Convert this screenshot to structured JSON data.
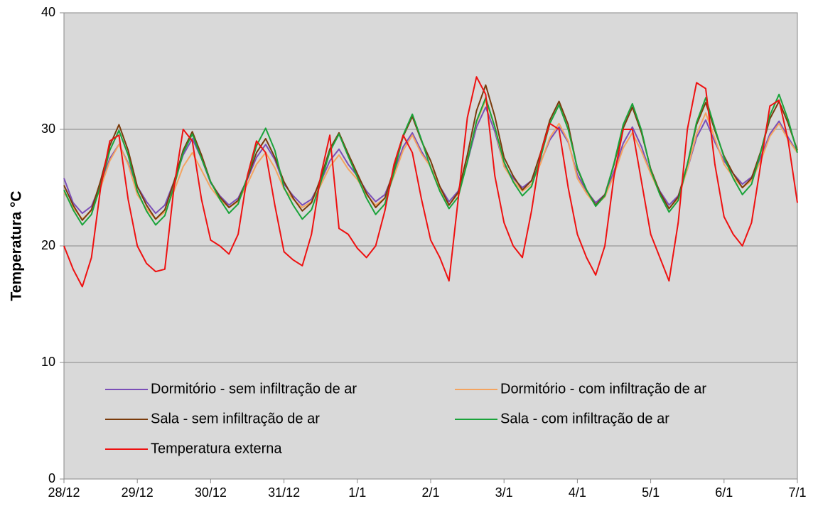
{
  "chart_data": {
    "type": "line",
    "y_label": "Temperatura °C",
    "x": [
      0,
      0.125,
      0.25,
      0.375,
      0.5,
      0.625,
      0.75,
      0.875,
      1,
      1.125,
      1.25,
      1.375,
      1.5,
      1.625,
      1.75,
      1.875,
      2,
      2.125,
      2.25,
      2.375,
      2.5,
      2.625,
      2.75,
      2.875,
      3,
      3.125,
      3.25,
      3.375,
      3.5,
      3.625,
      3.75,
      3.875,
      4,
      4.125,
      4.25,
      4.375,
      4.5,
      4.625,
      4.75,
      4.875,
      5,
      5.125,
      5.25,
      5.375,
      5.5,
      5.625,
      5.75,
      5.875,
      6,
      6.125,
      6.25,
      6.375,
      6.5,
      6.625,
      6.75,
      6.875,
      7,
      7.125,
      7.25,
      7.375,
      7.5,
      7.625,
      7.75,
      7.875,
      8,
      8.125,
      8.25,
      8.375,
      8.5,
      8.625,
      8.75,
      8.875,
      9,
      9.125,
      9.25,
      9.375,
      9.5,
      9.625,
      9.75,
      9.875,
      10
    ],
    "xlim": [
      0,
      10
    ],
    "xticks": [
      {
        "value": 0,
        "label": "28/12"
      },
      {
        "value": 1,
        "label": "29/12"
      },
      {
        "value": 2,
        "label": "30/12"
      },
      {
        "value": 3,
        "label": "31/12"
      },
      {
        "value": 4,
        "label": "1/1"
      },
      {
        "value": 5,
        "label": "2/1"
      },
      {
        "value": 6,
        "label": "3/1"
      },
      {
        "value": 7,
        "label": "4/1"
      },
      {
        "value": 8,
        "label": "5/1"
      },
      {
        "value": 9,
        "label": "6/1"
      },
      {
        "value": 10,
        "label": "7/1"
      }
    ],
    "ylim": [
      0,
      40
    ],
    "yticks": [
      0,
      10,
      20,
      30,
      40
    ],
    "grid": true,
    "series": [
      {
        "name": "Dormitório - sem infiltração de ar",
        "color": "#7b4fb8",
        "values": [
          25.8,
          23.7,
          22.8,
          23.4,
          25.3,
          27.5,
          28.7,
          27.1,
          25.1,
          23.8,
          22.8,
          23.5,
          25.5,
          27.8,
          29.2,
          27.5,
          25.4,
          24.3,
          23.5,
          24.1,
          25.7,
          27.6,
          28.7,
          27.4,
          25.3,
          24.3,
          23.5,
          24.0,
          25.5,
          27.3,
          28.3,
          27.0,
          26.0,
          24.7,
          23.8,
          24.4,
          26.3,
          28.5,
          29.7,
          28.1,
          26.8,
          25.1,
          23.8,
          24.7,
          27.2,
          30.2,
          31.9,
          29.8,
          26.9,
          25.8,
          25.0,
          25.6,
          27.2,
          29.1,
          30.2,
          28.9,
          26.1,
          24.7,
          23.7,
          24.4,
          26.4,
          28.8,
          30.2,
          28.5,
          26.2,
          24.7,
          23.5,
          24.3,
          26.6,
          29.3,
          30.8,
          28.9,
          27.3,
          26.2,
          25.3,
          25.9,
          27.6,
          29.6,
          30.7,
          29.3,
          28.0
        ]
      },
      {
        "name": "Dormitório - com infiltração de ar",
        "color": "#f4a460",
        "values": [
          24.6,
          23.3,
          22.3,
          23.0,
          25.0,
          27.3,
          28.7,
          27.0,
          24.4,
          23.2,
          22.3,
          22.9,
          24.7,
          26.8,
          28.0,
          26.5,
          25.0,
          24.0,
          23.3,
          23.8,
          25.3,
          27.0,
          28.0,
          26.7,
          24.9,
          24.0,
          23.3,
          23.8,
          25.2,
          26.8,
          27.8,
          26.6,
          25.7,
          24.4,
          23.5,
          24.1,
          26.0,
          28.2,
          29.5,
          27.9,
          26.8,
          24.9,
          23.5,
          24.5,
          27.3,
          30.6,
          32.5,
          30.2,
          26.8,
          25.6,
          24.7,
          25.3,
          27.1,
          29.3,
          30.5,
          29.0,
          25.8,
          24.5,
          23.5,
          24.2,
          26.1,
          28.4,
          29.7,
          28.1,
          26.2,
          24.5,
          23.2,
          24.1,
          26.6,
          29.6,
          31.4,
          29.2,
          27.0,
          25.9,
          25.0,
          25.6,
          27.3,
          29.4,
          30.5,
          29.1,
          28.0
        ]
      },
      {
        "name": "Sala - sem infiltração de ar",
        "color": "#7a3b0c",
        "values": [
          25.2,
          23.5,
          22.2,
          23.1,
          25.6,
          28.6,
          30.4,
          28.2,
          25.1,
          23.5,
          22.3,
          23.1,
          25.5,
          28.2,
          29.8,
          27.8,
          25.5,
          24.2,
          23.3,
          23.9,
          25.8,
          28.0,
          29.2,
          27.6,
          25.5,
          24.1,
          23.0,
          23.7,
          25.8,
          28.3,
          29.7,
          27.9,
          26.2,
          24.5,
          23.3,
          24.1,
          26.6,
          29.4,
          31.1,
          29.0,
          27.3,
          25.1,
          23.5,
          24.6,
          27.8,
          31.6,
          33.8,
          31.1,
          27.6,
          26.0,
          24.8,
          25.6,
          28.0,
          30.8,
          32.4,
          30.4,
          26.6,
          24.8,
          23.5,
          24.4,
          27.0,
          30.1,
          31.9,
          29.7,
          26.6,
          24.6,
          23.2,
          24.2,
          27.0,
          30.4,
          32.3,
          29.9,
          27.7,
          26.2,
          25.0,
          25.8,
          28.1,
          30.9,
          32.4,
          30.5,
          28.2
        ]
      },
      {
        "name": "Sala - com infiltração de ar",
        "color": "#1aa33a",
        "values": [
          24.8,
          23.1,
          21.8,
          22.7,
          25.2,
          28.2,
          29.9,
          27.8,
          24.7,
          23.0,
          21.8,
          22.6,
          25.1,
          28.0,
          29.6,
          27.5,
          25.5,
          24.0,
          22.8,
          23.6,
          25.9,
          28.6,
          30.1,
          28.2,
          25.0,
          23.5,
          22.3,
          23.1,
          25.4,
          28.1,
          29.6,
          27.7,
          25.9,
          24.1,
          22.7,
          23.6,
          26.3,
          29.5,
          31.3,
          29.1,
          26.7,
          24.7,
          23.2,
          24.2,
          27.2,
          30.7,
          32.7,
          30.2,
          27.2,
          25.5,
          24.3,
          25.1,
          27.6,
          30.5,
          32.1,
          30.0,
          26.7,
          24.8,
          23.4,
          24.3,
          27.1,
          30.4,
          32.2,
          29.9,
          26.5,
          24.4,
          22.9,
          23.9,
          27.0,
          30.6,
          32.7,
          30.1,
          27.6,
          25.8,
          24.4,
          25.3,
          28.0,
          31.2,
          33.0,
          30.8,
          28.0
        ]
      },
      {
        "name": "Temperatura externa",
        "color": "#ee1111",
        "values": [
          20,
          18,
          16.5,
          19,
          25,
          29,
          29.5,
          24,
          20,
          18.5,
          17.8,
          18,
          25,
          30,
          29,
          24,
          20.5,
          20,
          19.3,
          21,
          26,
          29,
          28,
          23.5,
          19.5,
          18.8,
          18.3,
          21,
          26,
          29.5,
          21.5,
          21,
          19.8,
          19,
          20,
          23,
          27,
          29.5,
          28,
          24,
          20.5,
          19,
          17,
          24,
          31,
          34.5,
          33,
          26,
          22,
          20,
          19,
          23,
          28,
          30.5,
          30,
          25,
          21,
          19,
          17.5,
          20,
          26,
          30,
          30,
          25.5,
          21,
          19,
          17,
          22,
          30,
          34,
          33.5,
          27,
          22.5,
          21,
          20,
          22,
          27,
          32,
          32.5,
          29,
          23.7
        ]
      }
    ]
  }
}
